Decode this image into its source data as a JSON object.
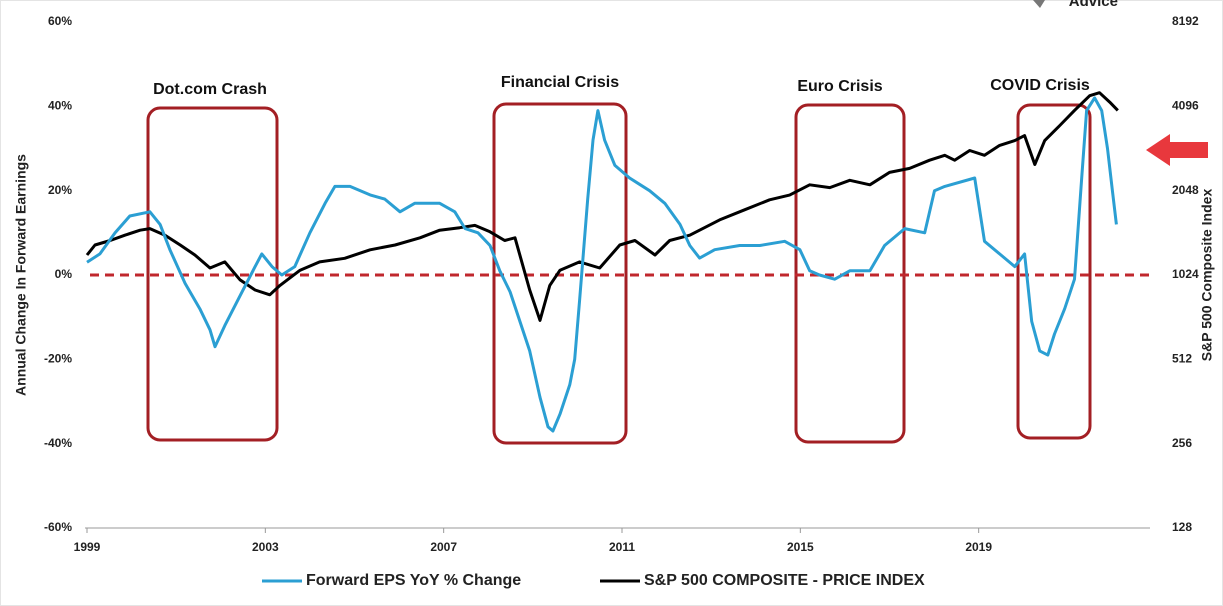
{
  "chart_data": {
    "type": "line",
    "logo_text": "Advice",
    "xlabel": null,
    "ylabel": "Annual Change In Forward Earnings",
    "y2label": "S&P 500  Composite Index",
    "xlim": [
      1999,
      2023
    ],
    "xticks": [
      1999,
      2003,
      2007,
      2011,
      2015,
      2019
    ],
    "ylim": [
      -60,
      60
    ],
    "yticks": [
      {
        "value": -60,
        "label": "-60%"
      },
      {
        "value": -40,
        "label": "-40%"
      },
      {
        "value": -20,
        "label": "-20%"
      },
      {
        "value": 0,
        "label": "0%"
      },
      {
        "value": 20,
        "label": "20%"
      },
      {
        "value": 40,
        "label": "40%"
      },
      {
        "value": 60,
        "label": "60%"
      }
    ],
    "y2lim": [
      128,
      8192
    ],
    "y2ticks": [
      128,
      256,
      512,
      1024,
      2048,
      4096,
      8192
    ],
    "y2log": true,
    "grid": false,
    "legend": "bottom",
    "reference_line": {
      "value": 0,
      "color": "#c0272d"
    },
    "annotations": [
      {
        "text": "Dot.com Crash"
      },
      {
        "text": "Financial Crisis"
      },
      {
        "text": "Euro Crisis"
      },
      {
        "text": "COVID Crisis"
      }
    ],
    "series": [
      {
        "name": "Forward EPS YoY % Change",
        "color": "#2b9fd3",
        "axis": "y",
        "x": [
          1999.0,
          1999.29,
          1999.63,
          1999.96,
          2000.41,
          2000.64,
          2000.86,
          2001.2,
          2001.53,
          2001.76,
          2001.87,
          2002.09,
          2002.43,
          2002.77,
          2002.92,
          2003.15,
          2003.37,
          2003.66,
          2004.0,
          2004.34,
          2004.56,
          2004.9,
          2005.35,
          2005.68,
          2006.02,
          2006.35,
          2006.91,
          2007.25,
          2007.48,
          2007.77,
          2008.04,
          2008.26,
          2008.49,
          2008.71,
          2008.93,
          2009.16,
          2009.34,
          2009.45,
          2009.61,
          2009.83,
          2009.94,
          2010.05,
          2010.23,
          2010.35,
          2010.46,
          2010.61,
          2010.84,
          2011.17,
          2011.62,
          2011.96,
          2012.3,
          2012.52,
          2012.74,
          2013.08,
          2013.64,
          2014.09,
          2014.65,
          2014.99,
          2015.21,
          2015.43,
          2015.77,
          2016.11,
          2016.56,
          2016.89,
          2017.34,
          2017.79,
          2018.01,
          2018.24,
          2018.91,
          2019.13,
          2019.47,
          2019.81,
          2020.03,
          2020.19,
          2020.37,
          2020.55,
          2020.7,
          2020.93,
          2021.15,
          2021.31,
          2021.42,
          2021.6,
          2021.76,
          2021.89,
          2022.0,
          2022.09
        ],
        "values": [
          3,
          5,
          10,
          14,
          15,
          12,
          6,
          -2,
          -8,
          -13,
          -17,
          -12,
          -5,
          2,
          5,
          2,
          0,
          2,
          10,
          17,
          21,
          21,
          19,
          18,
          15,
          17,
          17,
          15,
          11,
          10,
          7,
          1,
          -4,
          -11,
          -18,
          -29,
          -36,
          -37,
          -33,
          -26,
          -20,
          -6,
          18,
          32,
          39,
          32,
          26,
          23,
          20,
          17,
          12,
          7,
          4,
          6,
          7,
          7,
          8,
          6,
          1,
          0,
          -1,
          1,
          1,
          7,
          11,
          10,
          20,
          21,
          23,
          8,
          5,
          2,
          5,
          -11,
          -18,
          -19,
          -14,
          -8,
          -1,
          23,
          39,
          42,
          39,
          30,
          20,
          12
        ]
      },
      {
        "name": "S&P 500 COMPOSITE - PRICE INDEX",
        "color": "#000000",
        "axis": "y2",
        "x": [
          1999.0,
          1999.18,
          1999.52,
          1999.85,
          2000.19,
          2000.41,
          2000.75,
          2001.09,
          2001.42,
          2001.76,
          2002.09,
          2002.43,
          2002.77,
          2003.1,
          2003.33,
          2003.78,
          2004.22,
          2004.78,
          2005.35,
          2005.91,
          2006.47,
          2006.91,
          2007.36,
          2007.7,
          2008.04,
          2008.37,
          2008.6,
          2008.93,
          2009.16,
          2009.38,
          2009.61,
          2010.05,
          2010.5,
          2010.95,
          2011.29,
          2011.74,
          2012.07,
          2012.52,
          2013.19,
          2013.75,
          2014.31,
          2014.76,
          2015.21,
          2015.66,
          2016.11,
          2016.56,
          2017.0,
          2017.45,
          2017.9,
          2018.24,
          2018.46,
          2018.8,
          2019.13,
          2019.47,
          2019.81,
          2020.03,
          2020.26,
          2020.48,
          2020.82,
          2021.15,
          2021.49,
          2021.71,
          2021.94,
          2022.12
        ],
        "values": [
          1207,
          1310,
          1360,
          1420,
          1480,
          1500,
          1420,
          1310,
          1207,
          1085,
          1140,
          985,
          905,
          870,
          940,
          1065,
          1140,
          1175,
          1260,
          1310,
          1390,
          1480,
          1510,
          1540,
          1460,
          1360,
          1390,
          905,
          705,
          940,
          1065,
          1140,
          1085,
          1310,
          1360,
          1207,
          1360,
          1420,
          1610,
          1750,
          1900,
          1975,
          2150,
          2100,
          2230,
          2150,
          2380,
          2460,
          2630,
          2740,
          2630,
          2850,
          2740,
          2970,
          3090,
          3220,
          2540,
          3090,
          3500,
          3960,
          4470,
          4580,
          4240,
          3960
        ]
      }
    ]
  }
}
